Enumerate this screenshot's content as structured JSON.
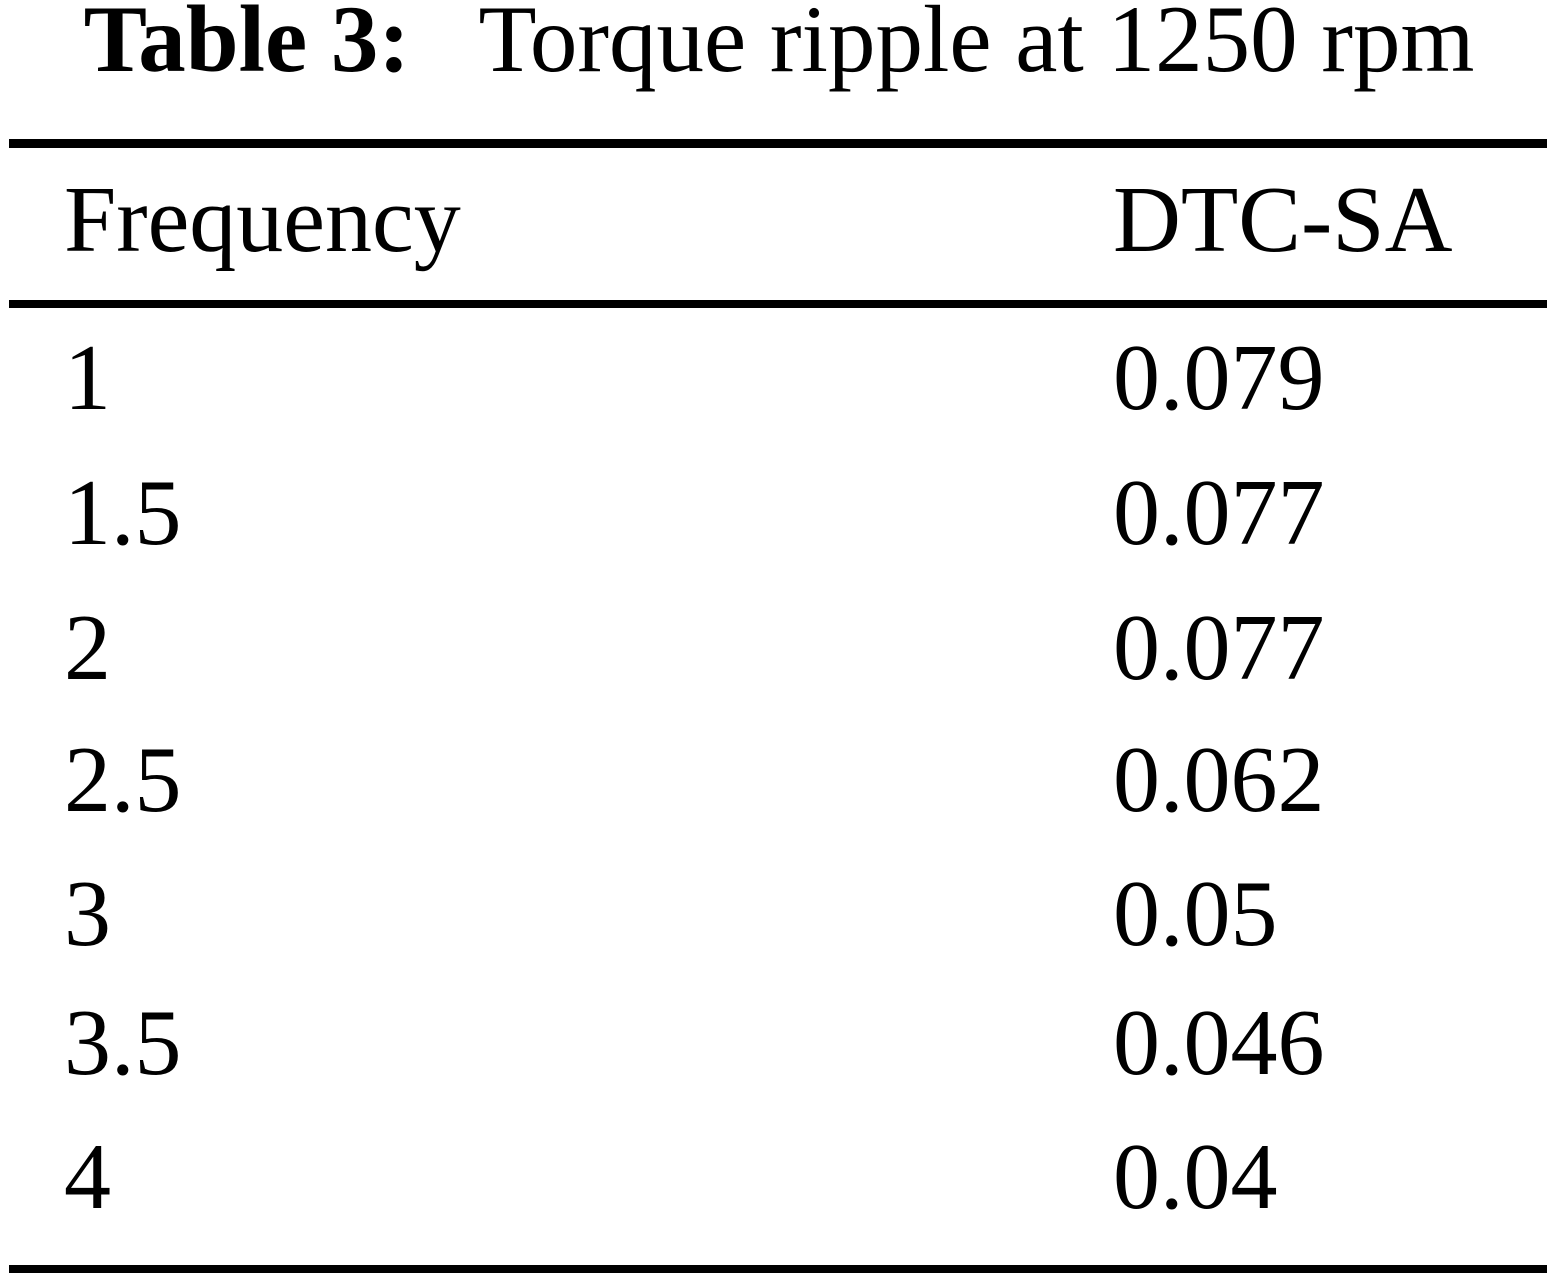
{
  "page": {
    "background": "#ffffff",
    "text_color": "#000000",
    "rule_color": "#000000"
  },
  "caption": {
    "label": "Table 3:",
    "text": "Torque ripple at 1250 rpm"
  },
  "table": {
    "columns": [
      {
        "key": "frequency",
        "label": "Frequency"
      },
      {
        "key": "dtc_sa",
        "label": "DTC-SA"
      }
    ],
    "rows": [
      {
        "frequency": "1",
        "dtc_sa": "0.079"
      },
      {
        "frequency": "1.5",
        "dtc_sa": "0.077"
      },
      {
        "frequency": "2",
        "dtc_sa": "0.077"
      },
      {
        "frequency": "2.5",
        "dtc_sa": "0.062"
      },
      {
        "frequency": "3",
        "dtc_sa": "0.05"
      },
      {
        "frequency": "3.5",
        "dtc_sa": "0.046"
      },
      {
        "frequency": "4",
        "dtc_sa": "0.04"
      }
    ]
  }
}
